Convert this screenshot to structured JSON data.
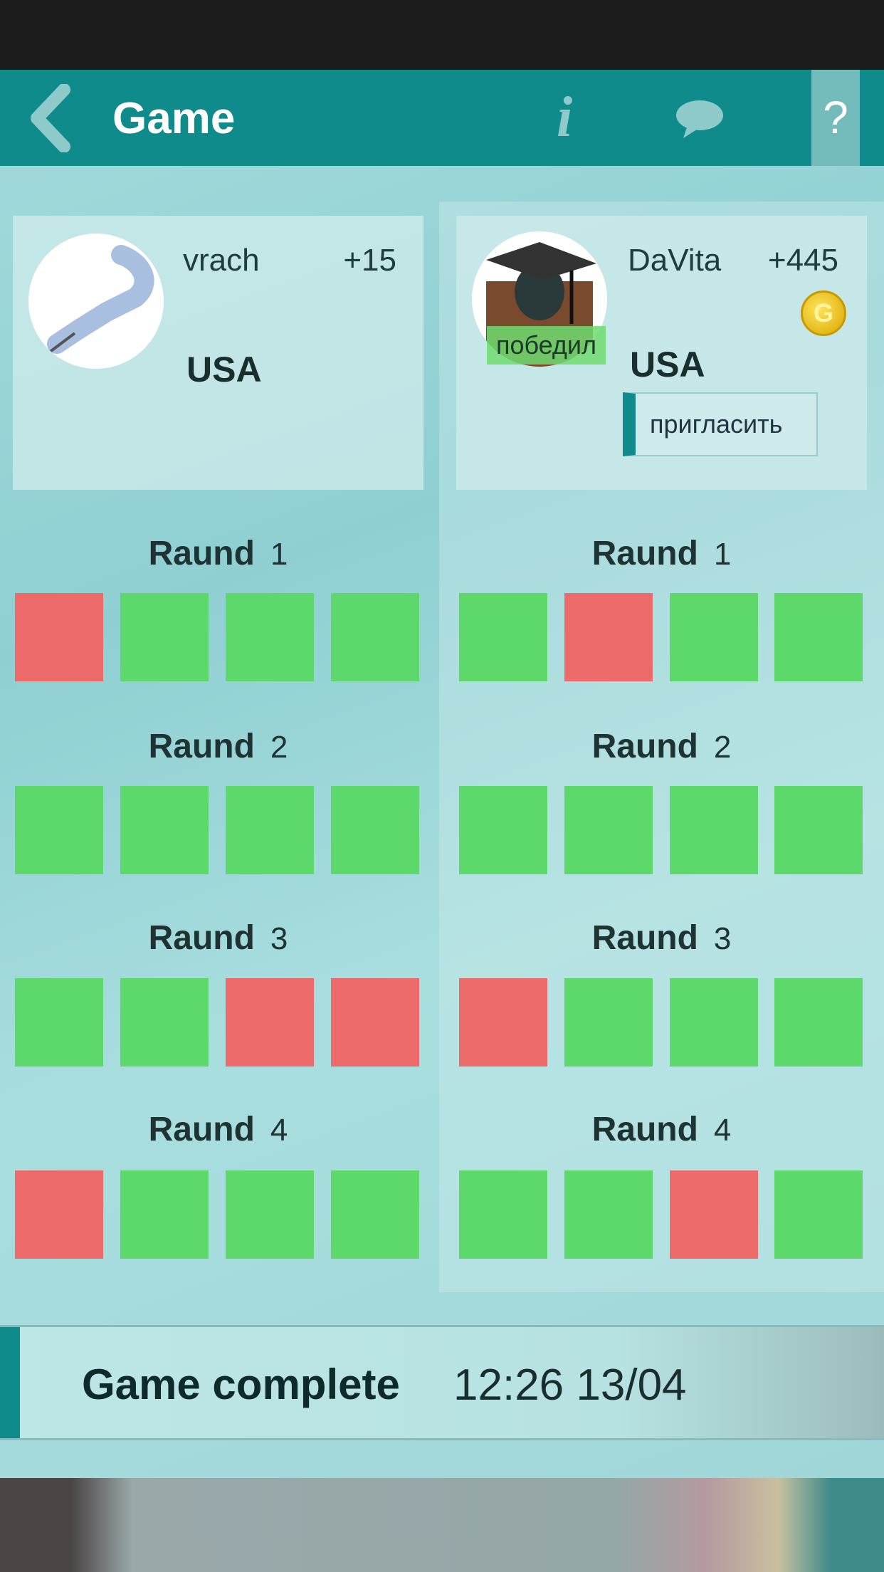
{
  "header": {
    "title": "Game",
    "help_label": "?",
    "icons": [
      "back-chevron-icon",
      "info-icon",
      "chat-bubble-icon",
      "help-icon"
    ]
  },
  "players": [
    {
      "name": "vrach",
      "score": "+15",
      "country": "USA"
    },
    {
      "name": "DaVita",
      "score": "+445",
      "country": "USA",
      "winner_badge": "победил",
      "invite_label": "пригласить"
    }
  ],
  "round_label": "Raund",
  "rounds": {
    "left": [
      [
        "wrong",
        "correct",
        "correct",
        "correct"
      ],
      [
        "correct",
        "correct",
        "correct",
        "correct"
      ],
      [
        "correct",
        "correct",
        "wrong",
        "wrong"
      ],
      [
        "wrong",
        "correct",
        "correct",
        "correct"
      ]
    ],
    "right": [
      [
        "correct",
        "wrong",
        "correct",
        "correct"
      ],
      [
        "correct",
        "correct",
        "correct",
        "correct"
      ],
      [
        "wrong",
        "correct",
        "correct",
        "correct"
      ],
      [
        "correct",
        "correct",
        "wrong",
        "correct"
      ]
    ]
  },
  "footer": {
    "status": "Game complete",
    "datetime": "12:26 13/04"
  },
  "colors": {
    "accent": "#0f8b8b",
    "correct": "#5cd96a",
    "wrong": "#ec6a6a"
  }
}
